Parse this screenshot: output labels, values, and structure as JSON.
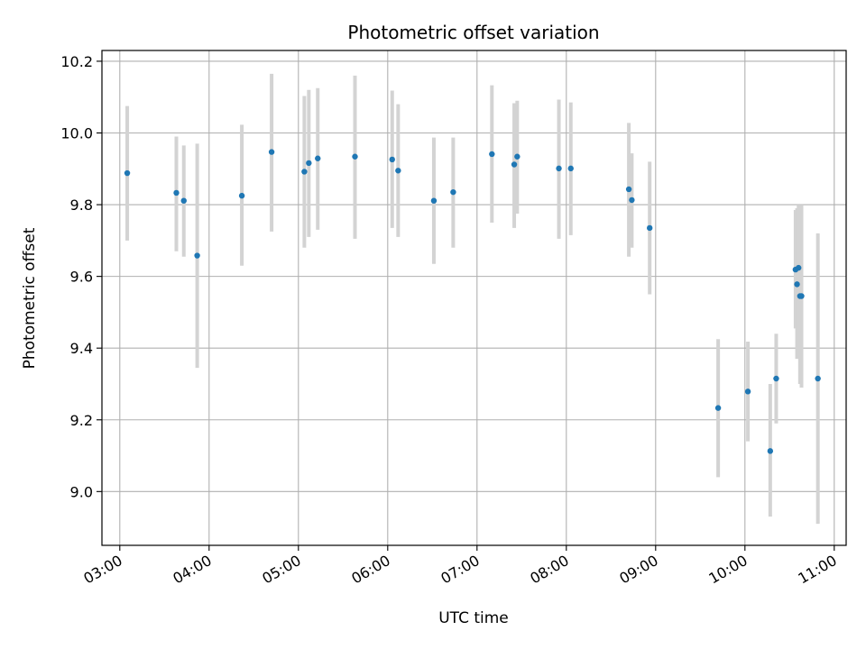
{
  "chart_data": {
    "type": "scatter",
    "title": "Photometric offset variation",
    "xlabel": "UTC time",
    "ylabel": "Photometric offset",
    "x_tick_labels": [
      "03:00",
      "04:00",
      "05:00",
      "06:00",
      "07:00",
      "08:00",
      "09:00",
      "10:00",
      "11:00"
    ],
    "y_tick_labels": [
      "9.0",
      "9.2",
      "9.4",
      "9.6",
      "9.8",
      "10.0",
      "10.2"
    ],
    "xlim": [
      "02:48",
      "11:08"
    ],
    "ylim": [
      8.85,
      10.23
    ],
    "grid": true,
    "colors": {
      "point": "#1f77b4",
      "errorbar": "#d3d3d3",
      "grid": "#b0b0b0"
    },
    "points": [
      {
        "x": "03:05",
        "y": 9.888,
        "lo": 9.7,
        "hi": 10.075
      },
      {
        "x": "03:38",
        "y": 9.833,
        "lo": 9.67,
        "hi": 9.99
      },
      {
        "x": "03:43",
        "y": 9.811,
        "lo": 9.655,
        "hi": 9.965
      },
      {
        "x": "03:52",
        "y": 9.658,
        "lo": 9.345,
        "hi": 9.97
      },
      {
        "x": "04:22",
        "y": 9.825,
        "lo": 9.63,
        "hi": 10.023
      },
      {
        "x": "04:42",
        "y": 9.947,
        "lo": 9.725,
        "hi": 10.165
      },
      {
        "x": "05:04",
        "y": 9.892,
        "lo": 9.68,
        "hi": 10.103
      },
      {
        "x": "05:07",
        "y": 9.916,
        "lo": 9.71,
        "hi": 10.12
      },
      {
        "x": "05:13",
        "y": 9.929,
        "lo": 9.73,
        "hi": 10.125
      },
      {
        "x": "05:38",
        "y": 9.934,
        "lo": 9.705,
        "hi": 10.16
      },
      {
        "x": "06:03",
        "y": 9.926,
        "lo": 9.735,
        "hi": 10.118
      },
      {
        "x": "06:07",
        "y": 9.895,
        "lo": 9.71,
        "hi": 10.08
      },
      {
        "x": "06:31",
        "y": 9.811,
        "lo": 9.635,
        "hi": 9.987
      },
      {
        "x": "06:44",
        "y": 9.835,
        "lo": 9.68,
        "hi": 9.987
      },
      {
        "x": "07:10",
        "y": 9.941,
        "lo": 9.75,
        "hi": 10.133
      },
      {
        "x": "07:25",
        "y": 9.912,
        "lo": 9.735,
        "hi": 10.083
      },
      {
        "x": "07:27",
        "y": 9.934,
        "lo": 9.775,
        "hi": 10.09
      },
      {
        "x": "07:55",
        "y": 9.901,
        "lo": 9.705,
        "hi": 10.093
      },
      {
        "x": "08:03",
        "y": 9.901,
        "lo": 9.715,
        "hi": 10.085
      },
      {
        "x": "08:42",
        "y": 9.843,
        "lo": 9.655,
        "hi": 10.028
      },
      {
        "x": "08:44",
        "y": 9.813,
        "lo": 9.68,
        "hi": 9.943
      },
      {
        "x": "08:56",
        "y": 9.735,
        "lo": 9.55,
        "hi": 9.92
      },
      {
        "x": "09:42",
        "y": 9.233,
        "lo": 9.04,
        "hi": 9.425
      },
      {
        "x": "10:02",
        "y": 9.279,
        "lo": 9.14,
        "hi": 9.418
      },
      {
        "x": "10:17",
        "y": 9.113,
        "lo": 8.93,
        "hi": 9.3
      },
      {
        "x": "10:21",
        "y": 9.315,
        "lo": 9.19,
        "hi": 9.44
      },
      {
        "x": "10:34",
        "y": 9.619,
        "lo": 9.455,
        "hi": 9.785
      },
      {
        "x": "10:35",
        "y": 9.578,
        "lo": 9.37,
        "hi": 9.79
      },
      {
        "x": "10:36",
        "y": 9.624,
        "lo": 9.45,
        "hi": 9.8
      },
      {
        "x": "10:37",
        "y": 9.545,
        "lo": 9.3,
        "hi": 9.79
      },
      {
        "x": "10:38",
        "y": 9.545,
        "lo": 9.29,
        "hi": 9.8
      },
      {
        "x": "10:49",
        "y": 9.315,
        "lo": 8.91,
        "hi": 9.72
      }
    ]
  }
}
